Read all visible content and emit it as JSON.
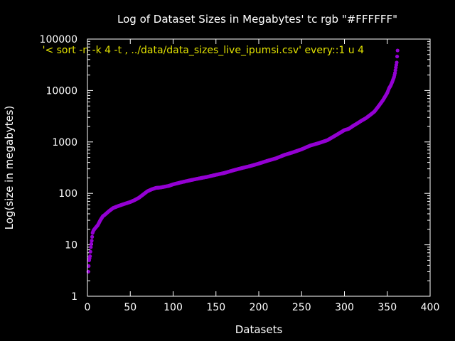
{
  "chart_data": {
    "type": "scatter",
    "title": "Log of Dataset Sizes in Megabytes' tc rgb \"#FFFFFF\"",
    "xlabel": "Datasets",
    "ylabel": "Log(size in megabytes)",
    "xlim": [
      0,
      400
    ],
    "ylim": [
      1,
      100000
    ],
    "y_scale": "log",
    "x_ticks": [
      "0",
      "50",
      "100",
      "150",
      "200",
      "250",
      "300",
      "350",
      "400"
    ],
    "y_ticks": [
      "1",
      "10",
      "100",
      "1000",
      "10000",
      "100000"
    ],
    "grid": false,
    "legend": {
      "position": "top-left"
    },
    "colors": {
      "background": "#000000",
      "axes": "#ffffff",
      "text": "#ffffff",
      "legend_text": "#e0e000",
      "series": "#9400d3"
    },
    "series": [
      {
        "name": "'< sort -n -k 4 -t , ../data/data_sizes_live_ipumsi.csv' every::1 u 4",
        "x": [
          1,
          2,
          3,
          4,
          5,
          6,
          7,
          8,
          10,
          12,
          15,
          18,
          20,
          25,
          30,
          35,
          40,
          45,
          50,
          55,
          60,
          65,
          70,
          75,
          80,
          85,
          90,
          95,
          100,
          110,
          120,
          130,
          140,
          150,
          160,
          170,
          180,
          190,
          200,
          210,
          220,
          230,
          240,
          250,
          260,
          270,
          280,
          290,
          300,
          305,
          310,
          315,
          320,
          325,
          330,
          335,
          340,
          345,
          350,
          352,
          354,
          356,
          358,
          359,
          360,
          361,
          362
        ],
        "y": [
          3,
          5,
          6,
          9,
          12,
          17,
          19,
          20,
          22,
          24,
          30,
          36,
          38,
          45,
          52,
          56,
          60,
          64,
          68,
          74,
          82,
          95,
          110,
          120,
          128,
          130,
          135,
          140,
          150,
          165,
          180,
          195,
          210,
          230,
          250,
          280,
          310,
          340,
          380,
          430,
          480,
          560,
          630,
          720,
          850,
          950,
          1080,
          1350,
          1700,
          1800,
          2050,
          2300,
          2600,
          2900,
          3350,
          3900,
          5000,
          6500,
          9000,
          11000,
          12500,
          15000,
          18500,
          22000,
          28000,
          35000,
          60000
        ]
      }
    ]
  }
}
